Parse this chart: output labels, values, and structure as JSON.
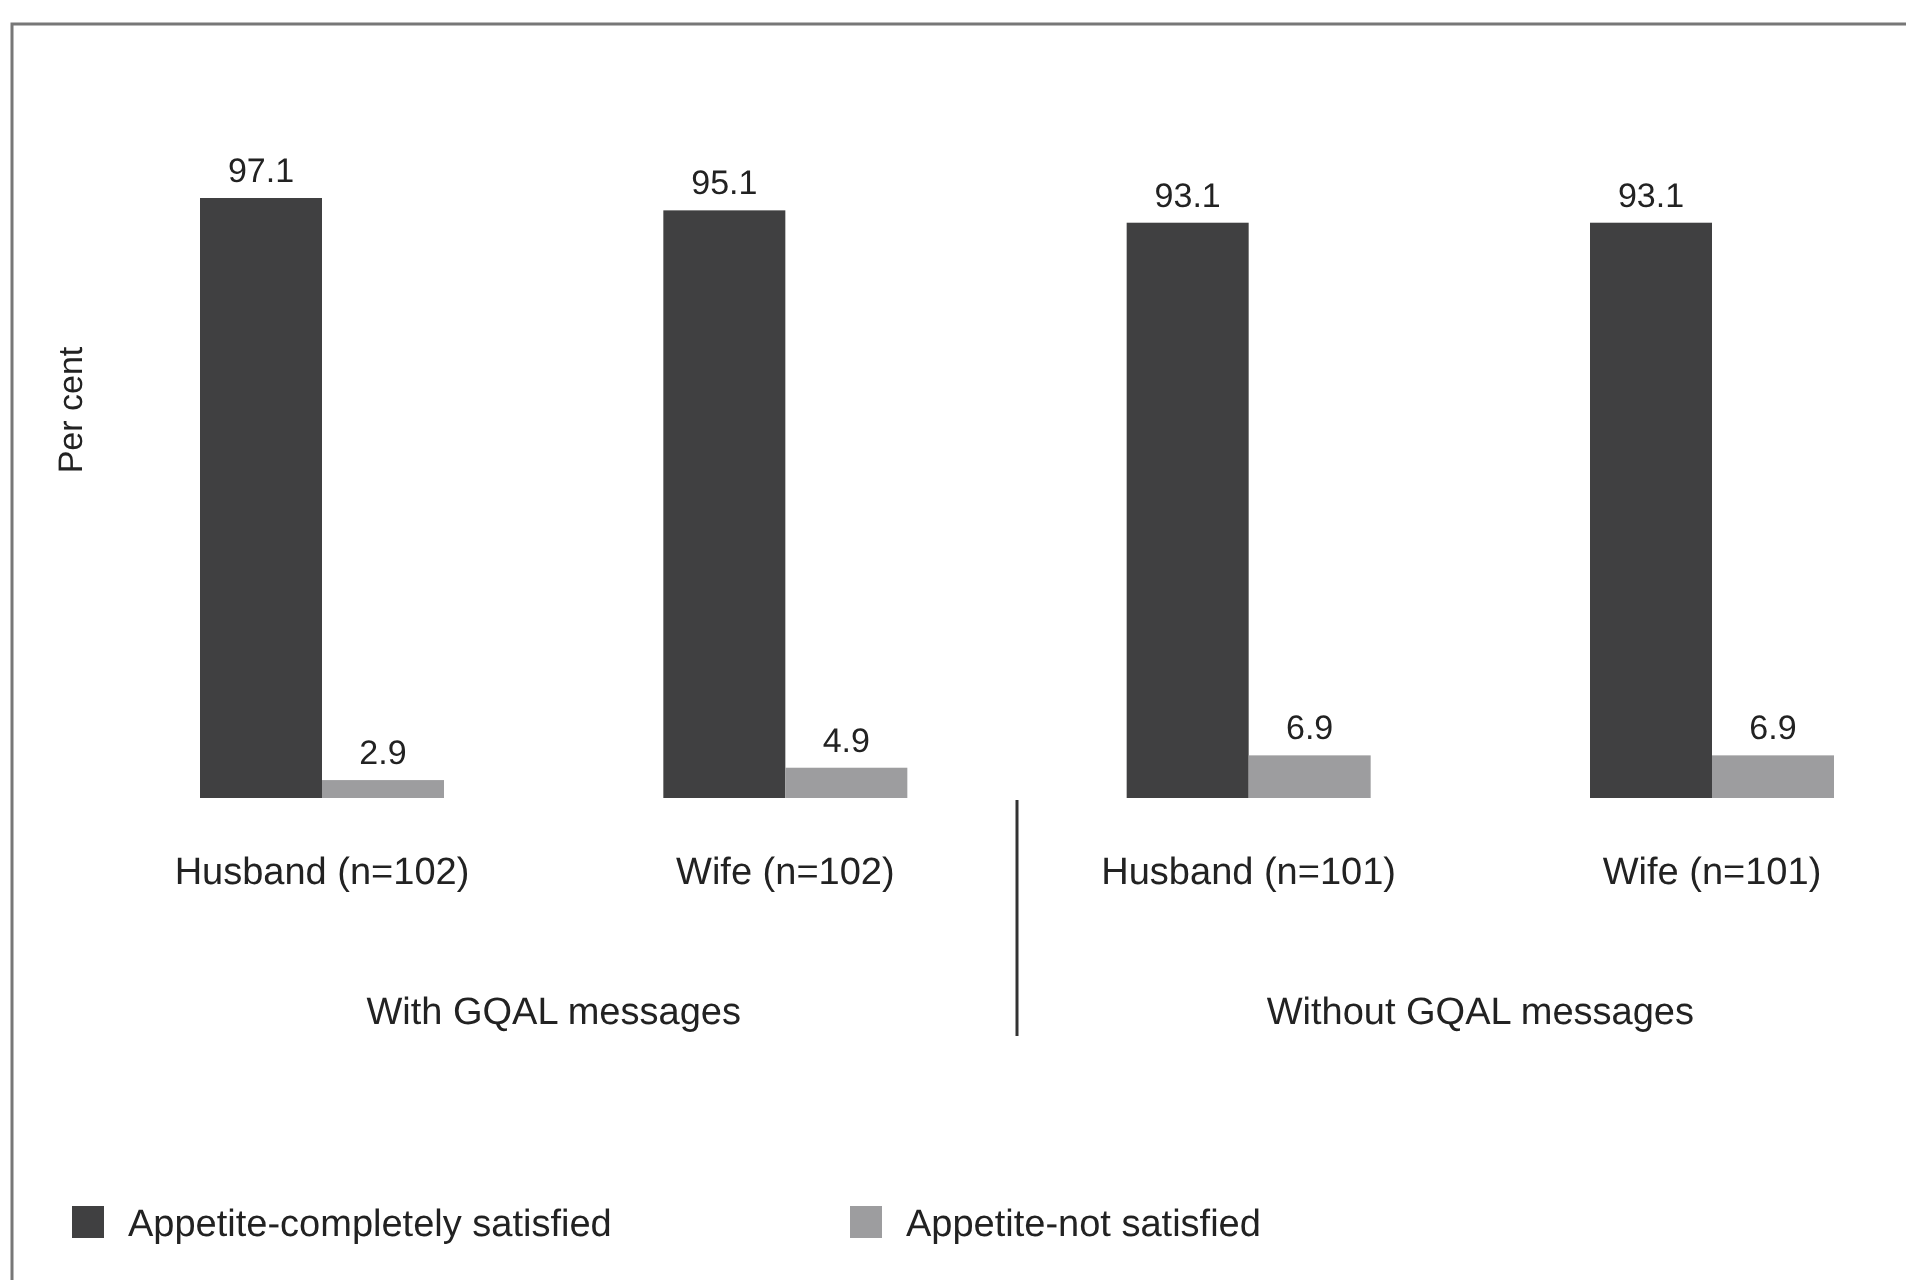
{
  "chart_data": {
    "type": "bar",
    "ylabel": "Per cent",
    "categories": [
      "Husband (n=102)",
      "Wife (n=102)",
      "Husband (n=101)",
      "Wife (n=101)"
    ],
    "series": [
      {
        "name": "Appetite-completely satisfied",
        "color": "#404041",
        "values": [
          97.1,
          95.1,
          93.1,
          93.1
        ]
      },
      {
        "name": "Appetite-not satisfied",
        "color": "#9d9d9f",
        "values": [
          2.9,
          4.9,
          6.9,
          6.9
        ]
      }
    ],
    "data_labels": true,
    "legend": "bottom left",
    "annotations": [
      "With GQAL messages",
      "Without GQAL messages"
    ]
  }
}
